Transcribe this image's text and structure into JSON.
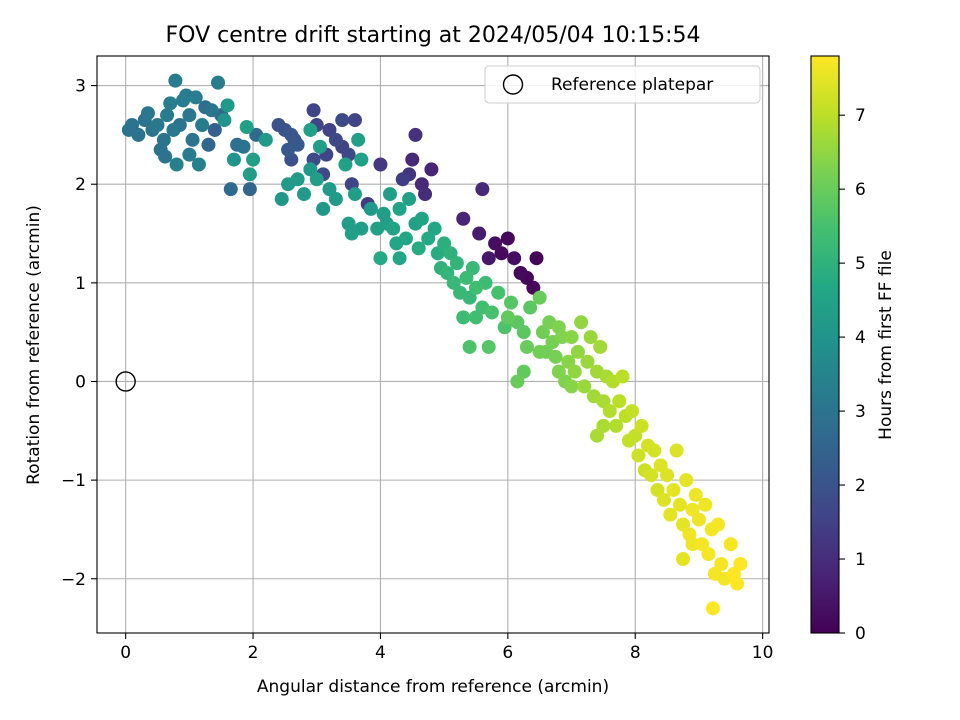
{
  "chart_data": {
    "type": "scatter",
    "title": "FOV centre drift starting at 2024/05/04 10:15:54",
    "xlabel": "Angular distance from reference (arcmin)",
    "ylabel": "Rotation from reference (arcmin)",
    "xlim": [
      -0.45,
      10.1
    ],
    "ylim": [
      -2.55,
      3.3
    ],
    "xticks": [
      0,
      2,
      4,
      6,
      8,
      10
    ],
    "yticks": [
      -2,
      -1,
      0,
      1,
      2,
      3
    ],
    "xtick_labels": [
      "0",
      "2",
      "4",
      "6",
      "8",
      "10"
    ],
    "ytick_labels": [
      "−2",
      "−1",
      "0",
      "1",
      "2",
      "3"
    ],
    "grid": true,
    "legend": {
      "placement": "top-right",
      "entries": [
        {
          "label": "Reference platepar",
          "marker": "open-circle"
        }
      ]
    },
    "reference_point": {
      "x": 0,
      "y": 0
    },
    "colorbar": {
      "label": "Hours from first FF file",
      "colormap": "viridis",
      "range": [
        0,
        7.8
      ],
      "ticks": [
        0,
        1,
        2,
        3,
        4,
        5,
        6,
        7
      ],
      "tick_labels": [
        "0",
        "1",
        "2",
        "3",
        "4",
        "5",
        "6",
        "7"
      ]
    },
    "points": [
      [
        0.05,
        2.55,
        3.0
      ],
      [
        0.1,
        2.6,
        3.0
      ],
      [
        0.2,
        2.5,
        3.0
      ],
      [
        0.3,
        2.65,
        3.0
      ],
      [
        0.35,
        2.72,
        3.1
      ],
      [
        0.42,
        2.55,
        3.0
      ],
      [
        0.5,
        2.6,
        3.1
      ],
      [
        0.55,
        2.35,
        3.0
      ],
      [
        0.6,
        2.45,
        3.0
      ],
      [
        0.65,
        2.7,
        3.2
      ],
      [
        0.7,
        2.82,
        3.3
      ],
      [
        0.75,
        2.55,
        3.1
      ],
      [
        0.78,
        3.05,
        3.2
      ],
      [
        0.85,
        2.6,
        3.0
      ],
      [
        0.9,
        2.85,
        3.3
      ],
      [
        0.95,
        2.9,
        3.2
      ],
      [
        1.0,
        2.7,
        3.1
      ],
      [
        1.05,
        2.45,
        3.0
      ],
      [
        1.1,
        2.88,
        3.3
      ],
      [
        1.15,
        2.2,
        3.4
      ],
      [
        1.2,
        2.6,
        3.2
      ],
      [
        1.25,
        2.78,
        2.8
      ],
      [
        1.3,
        2.4,
        2.6
      ],
      [
        1.35,
        2.75,
        3.0
      ],
      [
        1.4,
        2.55,
        2.4
      ],
      [
        1.45,
        3.03,
        3.2
      ],
      [
        1.5,
        2.7,
        2.7
      ],
      [
        1.55,
        2.65,
        4.0
      ],
      [
        1.6,
        2.8,
        4.2
      ],
      [
        0.8,
        2.2,
        3.4
      ],
      [
        0.62,
        2.28,
        3.0
      ],
      [
        1.0,
        2.3,
        3.2
      ],
      [
        1.65,
        1.95,
        2.7
      ],
      [
        1.7,
        2.25,
        4.0
      ],
      [
        1.75,
        2.4,
        2.8
      ],
      [
        1.85,
        2.38,
        3.0
      ],
      [
        1.9,
        2.58,
        4.4
      ],
      [
        1.95,
        2.1,
        4.3
      ],
      [
        2.0,
        2.25,
        4.4
      ],
      [
        2.05,
        2.5,
        2.7
      ],
      [
        1.95,
        1.95,
        2.6
      ],
      [
        2.2,
        2.45,
        4.2
      ],
      [
        2.4,
        2.6,
        2.0
      ],
      [
        2.5,
        2.55,
        2.0
      ],
      [
        2.55,
        2.35,
        2.2
      ],
      [
        2.6,
        2.5,
        2.1
      ],
      [
        2.65,
        2.45,
        2.0
      ],
      [
        2.7,
        2.4,
        2.2
      ],
      [
        2.45,
        1.85,
        4.1
      ],
      [
        2.55,
        2.0,
        4.2
      ],
      [
        2.6,
        2.25,
        1.9
      ],
      [
        2.7,
        2.05,
        4.2
      ],
      [
        2.8,
        1.9,
        4.2
      ],
      [
        2.9,
        2.55,
        4.4
      ],
      [
        2.95,
        2.25,
        1.8
      ],
      [
        2.95,
        2.75,
        1.6
      ],
      [
        3.0,
        2.05,
        4.3
      ],
      [
        3.05,
        2.38,
        4.3
      ],
      [
        3.1,
        2.1,
        1.7
      ],
      [
        3.15,
        2.3,
        1.6
      ],
      [
        3.2,
        1.95,
        4.2
      ],
      [
        3.3,
        2.45,
        1.7
      ],
      [
        3.4,
        2.38,
        1.5
      ],
      [
        3.45,
        2.2,
        4.4
      ],
      [
        3.5,
        2.3,
        1.7
      ],
      [
        3.55,
        2.0,
        1.6
      ],
      [
        3.6,
        1.9,
        4.3
      ],
      [
        3.65,
        2.45,
        4.4
      ],
      [
        3.7,
        2.25,
        4.4
      ],
      [
        3.8,
        1.8,
        1.4
      ],
      [
        3.6,
        2.65,
        1.6
      ],
      [
        3.4,
        2.65,
        1.8
      ],
      [
        3.2,
        2.55,
        1.5
      ],
      [
        3.0,
        2.6,
        1.6
      ],
      [
        2.9,
        2.15,
        4.2
      ],
      [
        3.1,
        1.75,
        4.1
      ],
      [
        3.3,
        1.85,
        4.2
      ],
      [
        3.5,
        1.6,
        4.3
      ],
      [
        3.55,
        1.5,
        4.4
      ],
      [
        3.7,
        1.55,
        4.3
      ],
      [
        3.85,
        1.75,
        4.2
      ],
      [
        3.95,
        1.55,
        4.4
      ],
      [
        4.0,
        2.2,
        1.3
      ],
      [
        4.05,
        1.7,
        4.3
      ],
      [
        4.1,
        1.6,
        4.3
      ],
      [
        4.15,
        1.9,
        4.4
      ],
      [
        4.2,
        1.55,
        4.5
      ],
      [
        4.25,
        1.4,
        4.6
      ],
      [
        4.3,
        1.75,
        4.5
      ],
      [
        4.35,
        2.05,
        1.4
      ],
      [
        4.4,
        1.45,
        4.6
      ],
      [
        4.45,
        1.85,
        4.4
      ],
      [
        4.5,
        2.25,
        0.9
      ],
      [
        4.55,
        1.6,
        4.4
      ],
      [
        4.6,
        1.35,
        4.8
      ],
      [
        4.65,
        1.65,
        4.5
      ],
      [
        4.7,
        1.9,
        1.0
      ],
      [
        4.75,
        1.45,
        4.7
      ],
      [
        4.8,
        2.15,
        0.8
      ],
      [
        4.85,
        1.55,
        4.6
      ],
      [
        4.9,
        1.3,
        4.8
      ],
      [
        4.95,
        1.15,
        5.0
      ],
      [
        4.55,
        2.5,
        1.1
      ],
      [
        4.45,
        2.1,
        1.2
      ],
      [
        4.65,
        2.0,
        0.9
      ],
      [
        4.0,
        1.25,
        4.7
      ],
      [
        4.3,
        1.25,
        4.6
      ],
      [
        5.0,
        1.4,
        4.9
      ],
      [
        5.05,
        1.1,
        5.1
      ],
      [
        5.1,
        1.3,
        5.0
      ],
      [
        5.15,
        1.0,
        5.2
      ],
      [
        5.2,
        1.2,
        5.1
      ],
      [
        5.25,
        0.9,
        5.2
      ],
      [
        5.3,
        1.65,
        0.8
      ],
      [
        5.35,
        1.05,
        5.3
      ],
      [
        5.4,
        0.85,
        5.2
      ],
      [
        5.45,
        1.15,
        5.2
      ],
      [
        5.5,
        0.95,
        5.4
      ],
      [
        5.55,
        1.5,
        0.6
      ],
      [
        5.6,
        0.75,
        5.4
      ],
      [
        5.65,
        1.0,
        5.3
      ],
      [
        5.7,
        1.25,
        0.5
      ],
      [
        5.75,
        0.7,
        5.5
      ],
      [
        5.8,
        1.4,
        0.3
      ],
      [
        5.85,
        0.9,
        5.5
      ],
      [
        5.9,
        1.3,
        0.2
      ],
      [
        5.95,
        0.55,
        5.6
      ],
      [
        6.0,
        1.45,
        0.2
      ],
      [
        6.05,
        0.8,
        5.7
      ],
      [
        6.1,
        1.25,
        0.3
      ],
      [
        6.15,
        0.6,
        5.8
      ],
      [
        6.2,
        1.1,
        0.2
      ],
      [
        6.25,
        0.5,
        5.8
      ],
      [
        6.3,
        1.05,
        0.1
      ],
      [
        6.35,
        0.75,
        5.8
      ],
      [
        6.4,
        0.95,
        0.1
      ],
      [
        6.45,
        1.25,
        0.1
      ],
      [
        6.5,
        0.85,
        6.0
      ],
      [
        5.6,
        1.95,
        0.9
      ],
      [
        5.4,
        0.35,
        5.6
      ],
      [
        5.7,
        0.35,
        5.7
      ],
      [
        5.3,
        0.65,
        5.3
      ],
      [
        5.5,
        0.65,
        5.4
      ],
      [
        6.0,
        0.65,
        5.9
      ],
      [
        6.15,
        0.0,
        6.0
      ],
      [
        6.25,
        0.1,
        5.9
      ],
      [
        6.55,
        0.5,
        6.1
      ],
      [
        6.6,
        0.3,
        6.1
      ],
      [
        6.65,
        0.6,
        6.2
      ],
      [
        6.7,
        0.4,
        6.2
      ],
      [
        6.75,
        0.25,
        6.2
      ],
      [
        6.8,
        0.55,
        6.3
      ],
      [
        6.85,
        0.45,
        6.3
      ],
      [
        6.9,
        0.0,
        6.3
      ],
      [
        6.95,
        0.2,
        6.4
      ],
      [
        7.0,
        0.45,
        6.4
      ],
      [
        7.05,
        0.1,
        6.5
      ],
      [
        7.1,
        0.3,
        6.5
      ],
      [
        7.15,
        0.6,
        6.5
      ],
      [
        7.2,
        -0.05,
        6.6
      ],
      [
        7.25,
        0.2,
        6.6
      ],
      [
        7.3,
        0.45,
        6.6
      ],
      [
        7.35,
        -0.15,
        6.7
      ],
      [
        7.4,
        0.1,
        6.7
      ],
      [
        7.45,
        0.35,
        6.7
      ],
      [
        7.5,
        -0.2,
        6.8
      ],
      [
        7.55,
        0.05,
        6.8
      ],
      [
        7.6,
        -0.3,
        6.9
      ],
      [
        7.65,
        0.0,
        6.9
      ],
      [
        7.7,
        -0.45,
        6.9
      ],
      [
        7.75,
        -0.2,
        7.0
      ],
      [
        7.8,
        0.05,
        7.0
      ],
      [
        7.85,
        -0.35,
        7.0
      ],
      [
        7.9,
        -0.6,
        7.1
      ],
      [
        7.95,
        -0.3,
        7.1
      ],
      [
        8.0,
        -0.55,
        7.1
      ],
      [
        8.05,
        -0.75,
        7.2
      ],
      [
        8.1,
        -0.45,
        7.2
      ],
      [
        8.15,
        -0.9,
        7.2
      ],
      [
        8.2,
        -0.65,
        7.3
      ],
      [
        8.25,
        -0.95,
        7.3
      ],
      [
        8.3,
        -0.7,
        7.3
      ],
      [
        8.35,
        -1.1,
        7.3
      ],
      [
        8.4,
        -0.85,
        7.4
      ],
      [
        8.45,
        -1.2,
        7.4
      ],
      [
        8.5,
        -0.95,
        7.4
      ],
      [
        8.55,
        -1.35,
        7.5
      ],
      [
        8.6,
        -1.1,
        7.5
      ],
      [
        8.65,
        -0.7,
        7.4
      ],
      [
        8.7,
        -1.25,
        7.5
      ],
      [
        8.75,
        -1.45,
        7.5
      ],
      [
        8.8,
        -1.0,
        7.5
      ],
      [
        8.85,
        -1.55,
        7.6
      ],
      [
        8.9,
        -1.3,
        7.6
      ],
      [
        8.95,
        -1.15,
        7.6
      ],
      [
        9.0,
        -1.4,
        7.6
      ],
      [
        9.05,
        -1.65,
        7.7
      ],
      [
        9.1,
        -1.25,
        7.6
      ],
      [
        9.15,
        -1.75,
        7.7
      ],
      [
        9.2,
        -1.5,
        7.7
      ],
      [
        9.25,
        -1.95,
        7.7
      ],
      [
        9.3,
        -1.45,
        7.7
      ],
      [
        9.35,
        -1.85,
        7.7
      ],
      [
        9.4,
        -2.0,
        7.7
      ],
      [
        9.5,
        -1.65,
        7.7
      ],
      [
        9.55,
        -1.95,
        7.8
      ],
      [
        9.6,
        -2.05,
        7.8
      ],
      [
        9.65,
        -1.85,
        7.8
      ],
      [
        9.22,
        -2.3,
        7.8
      ],
      [
        8.75,
        -1.8,
        7.5
      ],
      [
        8.9,
        -1.65,
        7.6
      ],
      [
        7.4,
        -0.55,
        6.8
      ],
      [
        7.5,
        -0.45,
        6.8
      ],
      [
        7.0,
        -0.05,
        6.4
      ],
      [
        6.8,
        0.1,
        6.3
      ],
      [
        6.5,
        0.3,
        6.1
      ],
      [
        6.3,
        0.35,
        6.0
      ]
    ]
  }
}
